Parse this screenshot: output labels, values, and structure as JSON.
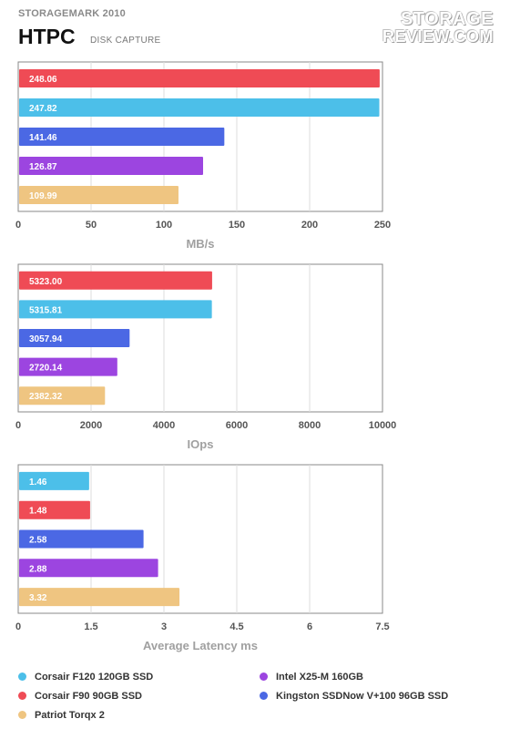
{
  "header": {
    "subtitle": "STORAGEMARK 2010",
    "title": "HTPC",
    "test_name": "DISK CAPTURE"
  },
  "logo": {
    "line1": "STORAGE",
    "line2": "REVIEW.COM"
  },
  "legend": [
    {
      "name": "Corsair F120 120GB SSD",
      "color": "#4cbfe9"
    },
    {
      "name": "Intel X25-M 160GB",
      "color": "#9c45e0"
    },
    {
      "name": "Corsair F90 90GB SSD",
      "color": "#ef4b55"
    },
    {
      "name": "Kingston SSDNow V+100 96GB SSD",
      "color": "#4b68e4"
    },
    {
      "name": "Patriot Torqx 2",
      "color": "#efc581"
    }
  ],
  "chart_data": [
    {
      "type": "bar",
      "orientation": "horizontal",
      "xlabel": "MB/s",
      "xlim": [
        0,
        250
      ],
      "ticks": [
        0,
        50,
        100,
        150,
        200,
        250
      ],
      "tick_labels": [
        "0",
        "50",
        "100",
        "150",
        "200",
        "250"
      ],
      "grid": true,
      "bars": [
        {
          "label": "248.06",
          "value": 248.06,
          "color": "#ef4b55"
        },
        {
          "label": "247.82",
          "value": 247.82,
          "color": "#4cbfe9"
        },
        {
          "label": "141.46",
          "value": 141.46,
          "color": "#4b68e4"
        },
        {
          "label": "126.87",
          "value": 126.87,
          "color": "#9c45e0"
        },
        {
          "label": "109.99",
          "value": 109.99,
          "color": "#efc581"
        }
      ]
    },
    {
      "type": "bar",
      "orientation": "horizontal",
      "xlabel": "IOps",
      "xlim": [
        0,
        10000
      ],
      "ticks": [
        0,
        2000,
        4000,
        6000,
        8000,
        10000
      ],
      "tick_labels": [
        "0",
        "2000",
        "4000",
        "6000",
        "8000",
        "10000"
      ],
      "grid": true,
      "bars": [
        {
          "label": "5323.00",
          "value": 5323.0,
          "color": "#ef4b55"
        },
        {
          "label": "5315.81",
          "value": 5315.81,
          "color": "#4cbfe9"
        },
        {
          "label": "3057.94",
          "value": 3057.94,
          "color": "#4b68e4"
        },
        {
          "label": "2720.14",
          "value": 2720.14,
          "color": "#9c45e0"
        },
        {
          "label": "2382.32",
          "value": 2382.32,
          "color": "#efc581"
        }
      ]
    },
    {
      "type": "bar",
      "orientation": "horizontal",
      "xlabel": "Average Latency ms",
      "xlim": [
        0,
        7.5
      ],
      "ticks": [
        0,
        1.5,
        3,
        4.5,
        6,
        7.5
      ],
      "tick_labels": [
        "0",
        "1.5",
        "3",
        "4.5",
        "6",
        "7.5"
      ],
      "grid": true,
      "bars": [
        {
          "label": "1.46",
          "value": 1.46,
          "color": "#4cbfe9"
        },
        {
          "label": "1.48",
          "value": 1.48,
          "color": "#ef4b55"
        },
        {
          "label": "2.58",
          "value": 2.58,
          "color": "#4b68e4"
        },
        {
          "label": "2.88",
          "value": 2.88,
          "color": "#9c45e0"
        },
        {
          "label": "3.32",
          "value": 3.32,
          "color": "#efc581"
        }
      ]
    }
  ]
}
